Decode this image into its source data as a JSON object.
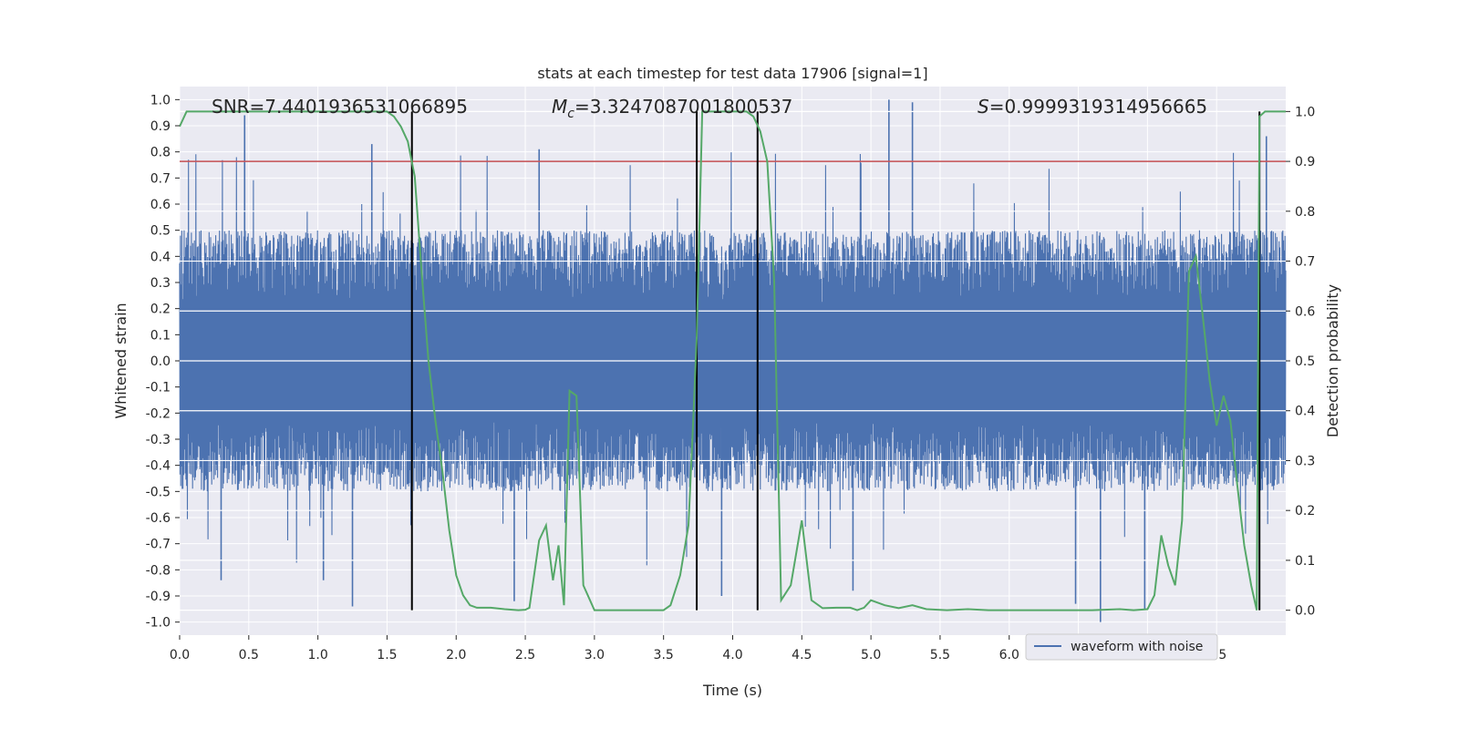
{
  "chart_data": {
    "type": "line",
    "title": "stats at each timestep for test data 17906 [signal=1]",
    "xlabel": "Time (s)",
    "ylabel_left": "Whitened strain",
    "ylabel_right": "Detection probability",
    "xlim": [
      0.0,
      8.0
    ],
    "ylim_left": [
      -1.05,
      1.05
    ],
    "ylim_right": [
      -0.05,
      1.05
    ],
    "x_ticks": [
      "0.0",
      "0.5",
      "1.0",
      "1.5",
      "2.0",
      "2.5",
      "3.0",
      "3.5",
      "4.0",
      "4.5",
      "5.0",
      "5.5",
      "6.0",
      "6.5",
      "7.0",
      "7.5"
    ],
    "x_tick_values": [
      0.0,
      0.5,
      1.0,
      1.5,
      2.0,
      2.5,
      3.0,
      3.5,
      4.0,
      4.5,
      5.0,
      5.5,
      6.0,
      6.5,
      7.0,
      7.5
    ],
    "y_left_ticks": [
      "1.0",
      "0.9",
      "0.8",
      "0.7",
      "0.6",
      "0.5",
      "0.4",
      "0.3",
      "0.2",
      "0.1",
      "0.0",
      "-0.1",
      "-0.2",
      "-0.3",
      "-0.4",
      "-0.5",
      "-0.6",
      "-0.7",
      "-0.8",
      "-0.9",
      "-1.0"
    ],
    "y_left_tick_values": [
      1.0,
      0.9,
      0.8,
      0.7,
      0.6,
      0.5,
      0.4,
      0.3,
      0.2,
      0.1,
      0.0,
      -0.1,
      -0.2,
      -0.3,
      -0.4,
      -0.5,
      -0.6,
      -0.7,
      -0.8,
      -0.9,
      -1.0
    ],
    "y_right_ticks": [
      "1.0",
      "0.9",
      "0.8",
      "0.7",
      "0.6",
      "0.5",
      "0.4",
      "0.3",
      "0.2",
      "0.1",
      "0.0"
    ],
    "y_right_tick_values": [
      1.0,
      0.9,
      0.8,
      0.7,
      0.6,
      0.5,
      0.4,
      0.3,
      0.2,
      0.1,
      0.0
    ],
    "grid": true,
    "annotations": {
      "snr": "SNR=7.4401936531066895",
      "mc_symbol": "M",
      "mc_sub": "c",
      "mc_value": "=3.3247087001800537",
      "s_symbol": "S",
      "s_value": "=0.9999319314956665"
    },
    "threshold_right": 0.9,
    "vertical_markers": [
      1.68,
      3.74,
      4.18,
      7.81
    ],
    "legend": {
      "entries": [
        "waveform with noise"
      ],
      "placement": "lower-right"
    },
    "series": [
      {
        "name": "waveform with noise",
        "kind": "noisy waveform",
        "typical_range": [
          -0.5,
          0.5
        ],
        "peak_samples": [
          {
            "x": 0.47,
            "y": 0.94
          },
          {
            "x": 1.39,
            "y": 0.83
          },
          {
            "x": 2.6,
            "y": 0.81
          },
          {
            "x": 5.13,
            "y": 1.0
          },
          {
            "x": 5.3,
            "y": 0.99
          },
          {
            "x": 7.86,
            "y": 0.86
          },
          {
            "x": 0.3,
            "y": -0.84
          },
          {
            "x": 1.04,
            "y": -0.84
          },
          {
            "x": 1.25,
            "y": -0.94
          },
          {
            "x": 2.42,
            "y": -0.92
          },
          {
            "x": 3.92,
            "y": -0.9
          },
          {
            "x": 4.87,
            "y": -0.88
          },
          {
            "x": 6.48,
            "y": -0.93
          },
          {
            "x": 6.66,
            "y": -1.0
          },
          {
            "x": 6.98,
            "y": -0.95
          }
        ]
      },
      {
        "name": "",
        "axis": "right",
        "x": [
          0.0,
          0.05,
          0.1,
          0.2,
          0.3,
          0.4,
          0.5,
          0.6,
          0.7,
          0.8,
          0.9,
          1.0,
          1.1,
          1.2,
          1.3,
          1.4,
          1.5,
          1.55,
          1.6,
          1.65,
          1.7,
          1.75,
          1.8,
          1.85,
          1.9,
          1.95,
          2.0,
          2.05,
          2.1,
          2.15,
          2.25,
          2.35,
          2.45,
          2.5,
          2.53,
          2.6,
          2.65,
          2.7,
          2.74,
          2.78,
          2.82,
          2.87,
          2.92,
          3.0,
          3.2,
          3.4,
          3.5,
          3.55,
          3.62,
          3.68,
          3.71,
          3.74,
          3.78,
          3.82,
          3.9,
          4.0,
          4.1,
          4.15,
          4.2,
          4.25,
          4.3,
          4.35,
          4.42,
          4.5,
          4.57,
          4.65,
          4.75,
          4.85,
          4.9,
          4.95,
          5.0,
          5.1,
          5.2,
          5.3,
          5.4,
          5.55,
          5.7,
          5.85,
          6.0,
          6.2,
          6.4,
          6.6,
          6.8,
          6.9,
          7.0,
          7.05,
          7.1,
          7.15,
          7.2,
          7.25,
          7.3,
          7.35,
          7.4,
          7.45,
          7.5,
          7.55,
          7.6,
          7.65,
          7.7,
          7.75,
          7.79,
          7.81,
          7.85,
          7.9,
          7.95,
          8.0
        ],
        "y": [
          0.97,
          1.0,
          1.0,
          1.0,
          1.0,
          1.0,
          1.0,
          1.0,
          1.0,
          1.0,
          1.0,
          1.0,
          1.0,
          1.0,
          1.0,
          1.0,
          1.0,
          0.99,
          0.97,
          0.94,
          0.87,
          0.68,
          0.5,
          0.38,
          0.28,
          0.16,
          0.07,
          0.03,
          0.01,
          0.005,
          0.005,
          0.002,
          0.0,
          0.001,
          0.005,
          0.14,
          0.17,
          0.06,
          0.13,
          0.01,
          0.44,
          0.43,
          0.05,
          0.0,
          0.0,
          0.0,
          0.0,
          0.01,
          0.07,
          0.17,
          0.35,
          0.55,
          1.0,
          1.0,
          1.0,
          1.0,
          1.0,
          0.99,
          0.96,
          0.9,
          0.66,
          0.02,
          0.05,
          0.18,
          0.02,
          0.004,
          0.005,
          0.005,
          0.0,
          0.005,
          0.02,
          0.01,
          0.004,
          0.01,
          0.002,
          0.0,
          0.002,
          0.0,
          0.0,
          0.0,
          0.0,
          0.0,
          0.002,
          0.0,
          0.002,
          0.03,
          0.15,
          0.09,
          0.05,
          0.18,
          0.68,
          0.71,
          0.59,
          0.46,
          0.37,
          0.43,
          0.38,
          0.25,
          0.13,
          0.05,
          0.0,
          0.99,
          1.0,
          1.0,
          1.0,
          1.0
        ]
      }
    ],
    "colors": {
      "waveform": "#4c72b0",
      "probability": "#55a868",
      "threshold": "#c44e52",
      "markers": "#000000",
      "axes_bg": "#eaeaf2",
      "grid": "#ffffff"
    }
  }
}
